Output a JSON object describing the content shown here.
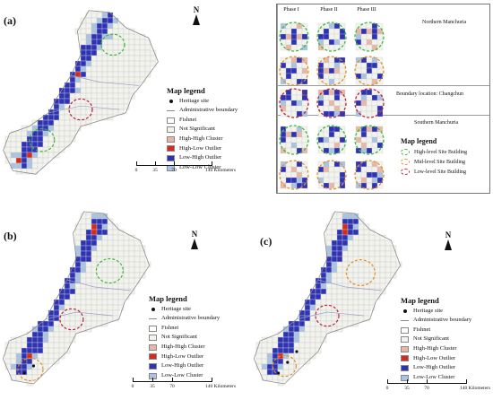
{
  "panels": {
    "a": "(a)",
    "b": "(b)",
    "c": "(c)"
  },
  "north": "N",
  "legend": {
    "title": "Map legend",
    "items": [
      {
        "label": "Heritage site",
        "kind": "dot",
        "color": "#111111"
      },
      {
        "label": "Administrative boundary",
        "kind": "line",
        "color": "#8a8a8a"
      },
      {
        "label": "Fishnet",
        "kind": "box",
        "color": "#ffffff"
      },
      {
        "label": "Not Significant",
        "kind": "box",
        "color": "#f3f3ee"
      },
      {
        "label": "High-High Cluster",
        "kind": "box",
        "color": "#e8b7a8"
      },
      {
        "label": "High-Low Outlier",
        "kind": "box",
        "color": "#d42b1e"
      },
      {
        "label": "Low-High Outlier",
        "kind": "box",
        "color": "#2e33b5"
      },
      {
        "label": "Low-Low Cluster",
        "kind": "box",
        "color": "#a9c3e0"
      }
    ]
  },
  "legend_a_items": [
    {
      "label": "Administrative boundary",
      "kind": "line",
      "color": "#8a8a8a"
    },
    {
      "label": "Fishnet",
      "kind": "box",
      "color": "#ffffff"
    },
    {
      "label": "Not Significant",
      "kind": "box",
      "color": "#f3f3ee"
    },
    {
      "label": "High-High Cluster",
      "kind": "box",
      "color": "#e8b7a8"
    },
    {
      "label": "High-Low Outlier",
      "kind": "box",
      "color": "#d42b1e"
    },
    {
      "label": "Low-High Outlier",
      "kind": "box",
      "color": "#2e33b5"
    },
    {
      "label": "Low-Low Cluster",
      "kind": "box",
      "color": "#a9c3e0"
    }
  ],
  "legend_a_first": "Heritage site",
  "scale": {
    "ticks": [
      "0",
      "35",
      "70",
      "140 Kilometers"
    ]
  },
  "inset": {
    "phases": [
      "Phase I",
      "Phase II",
      "Phase III"
    ],
    "regions": [
      "Northern Manchuria",
      "Boundary location: Changchun",
      "Southern Manchuria"
    ],
    "legend_title": "Map legend",
    "legend_items": [
      {
        "label": "High-level Site Building",
        "color": "#3cb83c"
      },
      {
        "label": "Mid-level Site Building",
        "color": "#e0912a"
      },
      {
        "label": "Low-level Site Building",
        "color": "#b8243a"
      }
    ]
  },
  "colors": {
    "ns": "#f3f3ee",
    "grid": "#c9c9c9",
    "hh": "#e8b7a8",
    "hl": "#d42b1e",
    "lh": "#2e33b5",
    "ll": "#a9c3e0",
    "green": "#3cb83c",
    "orange": "#e0912a",
    "crimson": "#b8243a"
  }
}
